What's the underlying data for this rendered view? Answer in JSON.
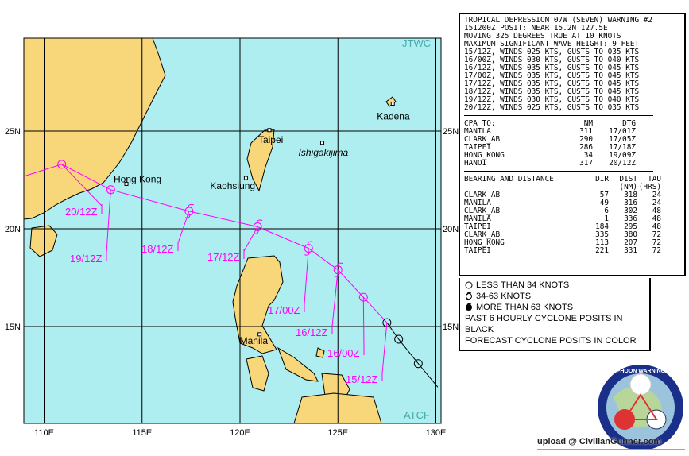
{
  "map": {
    "agency_top": "JTWC",
    "agency_bottom": "ATCF",
    "lon_labels": [
      "110E",
      "115E",
      "120E",
      "125E",
      "130E"
    ],
    "lat_labels": [
      "25N",
      "20N",
      "15N"
    ],
    "places": [
      {
        "name": "Kadena",
        "lat": 26.4,
        "lon": 127.8,
        "italic": false
      },
      {
        "name": "Taipei",
        "lat": 25.05,
        "lon": 121.5,
        "italic": false
      },
      {
        "name": "Ishigakijima",
        "lat": 24.4,
        "lon": 124.2,
        "italic": true
      },
      {
        "name": "Kaohsiung",
        "lat": 22.6,
        "lon": 120.3,
        "italic": false
      },
      {
        "name": "Hong Kong",
        "lat": 22.3,
        "lon": 114.2,
        "italic": false
      },
      {
        "name": "Manila",
        "lat": 14.6,
        "lon": 121.0,
        "italic": false
      }
    ],
    "colors": {
      "ocean": "#aeeef0",
      "land": "#f8d67a",
      "forecast": "#ff00ff",
      "past": "#000000",
      "grid": "#000000"
    },
    "past_track": [
      {
        "lat": 11.9,
        "lon": 130.1
      },
      {
        "lat": 13.1,
        "lon": 129.1
      },
      {
        "lat": 14.35,
        "lon": 128.1
      },
      {
        "lat": 15.2,
        "lon": 127.5
      }
    ],
    "forecast_track": [
      {
        "label": "15/12Z",
        "lat": 15.2,
        "lon": 127.5,
        "symbol": "less-than-34"
      },
      {
        "label": "16/00Z",
        "lat": 16.5,
        "lon": 126.3,
        "symbol": "less-than-34"
      },
      {
        "label": "16/12Z",
        "lat": 17.9,
        "lon": 125.0,
        "symbol": "34-63"
      },
      {
        "label": "17/00Z",
        "lat": 19.0,
        "lon": 123.5,
        "symbol": "34-63"
      },
      {
        "label": "17/12Z",
        "lat": 20.1,
        "lon": 120.9,
        "symbol": "34-63"
      },
      {
        "label": "18/12Z",
        "lat": 20.9,
        "lon": 117.4,
        "symbol": "34-63"
      },
      {
        "label": "19/12Z",
        "lat": 22.0,
        "lon": 113.4,
        "symbol": "less-than-34"
      },
      {
        "label": "20/12Z",
        "lat": 23.3,
        "lon": 110.9,
        "symbol": "less-than-34"
      }
    ]
  },
  "warning": {
    "lines": [
      "TROPICAL DEPRESSION 07W (SEVEN) WARNING #2",
      "151200Z POSIT: NEAR 15.2N 127.5E",
      "MOVING 325 DEGREES TRUE AT 10 KNOTS",
      "MAXIMUM SIGNIFICANT WAVE HEIGHT: 9 FEET",
      "15/12Z, WINDS 025 KTS, GUSTS TO 035 KTS",
      "16/00Z, WINDS 030 KTS, GUSTS TO 040 KTS",
      "16/12Z, WINDS 035 KTS, GUSTS TO 045 KTS",
      "17/00Z, WINDS 035 KTS, GUSTS TO 045 KTS",
      "17/12Z, WINDS 035 KTS, GUSTS TO 045 KTS",
      "18/12Z, WINDS 035 KTS, GUSTS TO 045 KTS",
      "19/12Z, WINDS 030 KTS, GUSTS TO 040 KTS",
      "20/12Z, WINDS 025 KTS, GUSTS TO 035 KTS"
    ]
  },
  "cpa": {
    "headers": [
      "CPA TO:",
      "NM",
      "DTG"
    ],
    "rows": [
      [
        "MANILA",
        "311",
        "17/01Z"
      ],
      [
        "CLARK_AB",
        "290",
        "17/05Z"
      ],
      [
        "TAIPEI",
        "286",
        "17/18Z"
      ],
      [
        "HONG_KONG",
        "34",
        "19/09Z"
      ],
      [
        "HANOI",
        "317",
        "20/12Z"
      ]
    ]
  },
  "bearing": {
    "headers": [
      "BEARING AND DISTANCE",
      "DIR",
      "DIST",
      "TAU"
    ],
    "subheaders": [
      "",
      "",
      "(NM)",
      "(HRS)"
    ],
    "rows": [
      [
        "CLARK_AB",
        "57",
        "318",
        "24"
      ],
      [
        "MANILA",
        "49",
        "316",
        "24"
      ],
      [
        "CLARK_AB",
        "6",
        "302",
        "48"
      ],
      [
        "MANILA",
        "1",
        "336",
        "48"
      ],
      [
        "TAIPEI",
        "184",
        "295",
        "48"
      ],
      [
        "CLARK_AB",
        "335",
        "380",
        "72"
      ],
      [
        "HONG_KONG",
        "113",
        "207",
        "72"
      ],
      [
        "TAIPEI",
        "221",
        "331",
        "72"
      ]
    ]
  },
  "legend": {
    "items": [
      "LESS THAN 34 KNOTS",
      "34-63 KNOTS",
      "MORE THAN 63 KNOTS"
    ],
    "note1": "PAST 6 HOURLY CYCLONE POSITS IN BLACK",
    "note2": "FORECAST CYCLONE POSITS IN COLOR"
  },
  "seal": {
    "text": "JOINT TYPHOON WARNING CENTER · USN · PEARL HARBOR, HAWAII · USAF"
  },
  "watermark": "upload @ CivilianGunner.com"
}
